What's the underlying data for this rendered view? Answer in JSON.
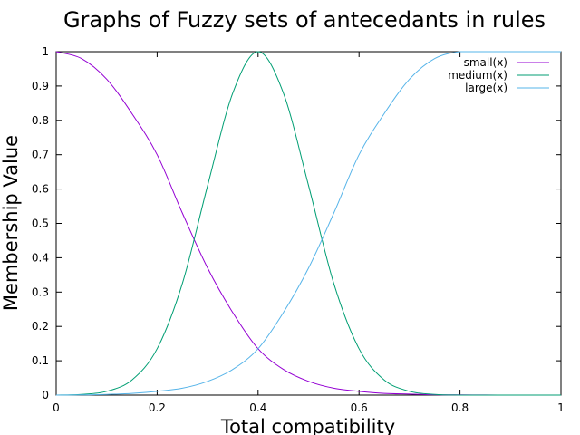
{
  "chart_data": {
    "type": "line",
    "title": "Graphs of Fuzzy sets of antecedants in rules",
    "xlabel": "Total compatibility",
    "ylabel": "Membership Value",
    "xlim": [
      0,
      1
    ],
    "ylim": [
      0,
      1
    ],
    "x_ticks": [
      "0",
      "0.2",
      "0.4",
      "0.6",
      "0.8",
      "1"
    ],
    "y_ticks": [
      "0",
      "0.1",
      "0.2",
      "0.3",
      "0.4",
      "0.5",
      "0.6",
      "0.7",
      "0.8",
      "0.9",
      "1"
    ],
    "grid": false,
    "legend_position": "top-right",
    "series": [
      {
        "name": "small(x)",
        "color": "#9400d3",
        "x": [
          0,
          0.05,
          0.1,
          0.15,
          0.2,
          0.25,
          0.3,
          0.35,
          0.4,
          0.45,
          0.5,
          0.55,
          0.6,
          0.65,
          0.7,
          0.75,
          0.8,
          0.85,
          0.9,
          0.95,
          1
        ],
        "y": [
          1,
          0.98,
          0.92,
          0.82,
          0.7,
          0.53,
          0.37,
          0.24,
          0.135,
          0.075,
          0.04,
          0.02,
          0.011,
          0.005,
          0.003,
          0.001,
          0.0005,
          0.0002,
          0,
          0,
          0
        ]
      },
      {
        "name": "medium(x)",
        "color": "#009e73",
        "x": [
          0,
          0.05,
          0.1,
          0.15,
          0.2,
          0.25,
          0.3,
          0.35,
          0.4,
          0.45,
          0.5,
          0.55,
          0.6,
          0.65,
          0.7,
          0.75,
          0.8,
          0.85,
          0.9,
          0.95,
          1
        ],
        "y": [
          0,
          0.002,
          0.011,
          0.044,
          0.135,
          0.325,
          0.61,
          0.88,
          1,
          0.88,
          0.61,
          0.325,
          0.135,
          0.044,
          0.011,
          0.002,
          0,
          0,
          0,
          0,
          0
        ]
      },
      {
        "name": "large(x)",
        "color": "#56b4e9",
        "x": [
          0,
          0.05,
          0.1,
          0.15,
          0.2,
          0.25,
          0.3,
          0.35,
          0.4,
          0.45,
          0.5,
          0.55,
          0.6,
          0.65,
          0.7,
          0.75,
          0.8,
          0.85,
          0.9,
          0.95,
          1
        ],
        "y": [
          0,
          0.0005,
          0.002,
          0.005,
          0.011,
          0.02,
          0.04,
          0.075,
          0.135,
          0.24,
          0.37,
          0.53,
          0.7,
          0.82,
          0.92,
          0.98,
          1,
          1,
          1,
          1,
          1
        ]
      }
    ]
  }
}
